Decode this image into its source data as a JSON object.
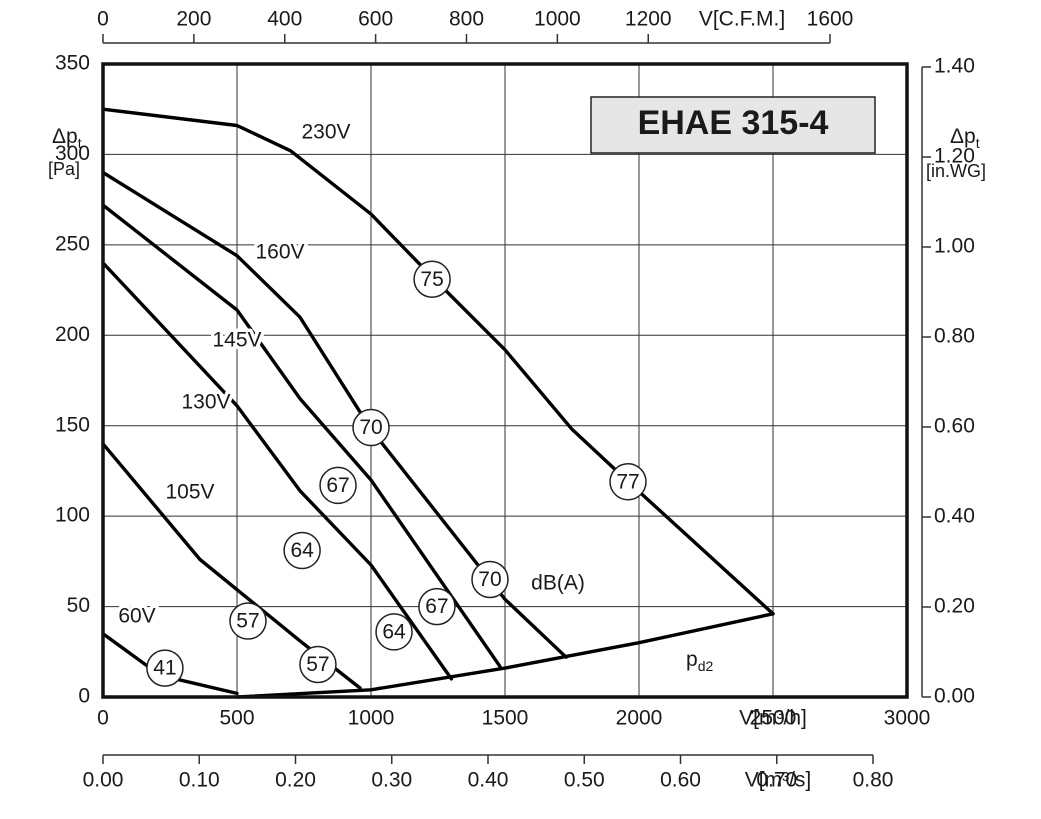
{
  "chart_data": {
    "type": "line",
    "title": "EHAE 315-4",
    "x_label": "V[m³/h]",
    "xlim": [
      0,
      3000
    ],
    "xticks": [
      0,
      500,
      1000,
      1500,
      2000,
      2500,
      3000
    ],
    "y_label": {
      "text": "Δp",
      "sub": "t",
      "unit": "[Pa]"
    },
    "ylim": [
      0,
      350
    ],
    "yticks": [
      0,
      50,
      100,
      150,
      200,
      250,
      300,
      350
    ],
    "y2_label": {
      "text": "Δp",
      "sub": "t",
      "unit": "[in.WG]"
    },
    "y2lim": [
      0,
      1.4
    ],
    "y2ticks": [
      {
        "value": 0,
        "label": "0.00"
      },
      {
        "value": 0.2,
        "label": "0.20"
      },
      {
        "value": 0.4,
        "label": "0.40"
      },
      {
        "value": 0.6,
        "label": "0.60"
      },
      {
        "value": 0.8,
        "label": "0.80"
      },
      {
        "value": 1.0,
        "label": "1.00"
      },
      {
        "value": 1.2,
        "label": "1.20"
      },
      {
        "value": 1.4,
        "label": "1.40"
      }
    ],
    "x_top_axis": {
      "label": "V[C.F.M.]",
      "xlim": [
        0,
        1600
      ],
      "xticks": [
        0,
        200,
        400,
        600,
        800,
        1000,
        1200,
        1600
      ]
    },
    "x_bottom_axis": {
      "label": "V[m³/s]",
      "xlim": [
        0,
        0.8
      ],
      "xticks": [
        {
          "value": 0,
          "label": "0.00"
        },
        {
          "value": 0.1,
          "label": "0.10"
        },
        {
          "value": 0.2,
          "label": "0.20"
        },
        {
          "value": 0.3,
          "label": "0.30"
        },
        {
          "value": 0.4,
          "label": "0.40"
        },
        {
          "value": 0.5,
          "label": "0.50"
        },
        {
          "value": 0.6,
          "label": "0.60"
        },
        {
          "value": 0.7,
          "label": "0.70"
        },
        {
          "value": 0.8,
          "label": "0.80"
        }
      ]
    },
    "grid": true,
    "series": [
      {
        "name": "230V",
        "color": "#000000",
        "x": [
          0,
          500,
          700,
          1000,
          1230,
          1500,
          1750,
          1960,
          2500
        ],
        "values": [
          325,
          316,
          302,
          267,
          232,
          192,
          148,
          119,
          46
        ]
      },
      {
        "name": "160V",
        "color": "#000000",
        "x": [
          0,
          500,
          735,
          1000,
          1500,
          1728
        ],
        "values": [
          290,
          244,
          210,
          148,
          54,
          22
        ]
      },
      {
        "name": "145V",
        "color": "#000000",
        "x": [
          0,
          500,
          735,
          1000,
          1481
        ],
        "values": [
          272,
          214,
          165,
          120,
          17
        ]
      },
      {
        "name": "130V",
        "color": "#000000",
        "x": [
          0,
          500,
          735,
          1000,
          1300
        ],
        "values": [
          240,
          161,
          114,
          73,
          10
        ]
      },
      {
        "name": "105V",
        "color": "#000000",
        "x": [
          0,
          362,
          735,
          959
        ],
        "values": [
          140,
          76,
          31,
          5
        ]
      },
      {
        "name": "60V",
        "color": "#000000",
        "x": [
          0,
          213,
          500
        ],
        "values": [
          35,
          12,
          2
        ]
      }
    ],
    "dynamic_pressure": {
      "label": {
        "text": "p",
        "sub": "d2"
      },
      "color": "#000000",
      "x": [
        500,
        1000,
        1500,
        2000,
        2500
      ],
      "values": [
        0,
        4,
        16,
        30,
        46
      ]
    },
    "noise_unit": "dB(A)",
    "noise_levels": [
      {
        "value": 75,
        "x": 1228,
        "y": 231
      },
      {
        "value": 77,
        "x": 1959,
        "y": 119
      },
      {
        "value": 70,
        "x": 1000,
        "y": 149
      },
      {
        "value": 70,
        "x": 1444,
        "y": 65
      },
      {
        "value": 67,
        "x": 877,
        "y": 117
      },
      {
        "value": 67,
        "x": 1246,
        "y": 50
      },
      {
        "value": 64,
        "x": 743,
        "y": 81
      },
      {
        "value": 64,
        "x": 1086,
        "y": 36
      },
      {
        "value": 57,
        "x": 541,
        "y": 42
      },
      {
        "value": 57,
        "x": 802,
        "y": 18
      },
      {
        "value": 41,
        "x": 231,
        "y": 16
      }
    ]
  }
}
